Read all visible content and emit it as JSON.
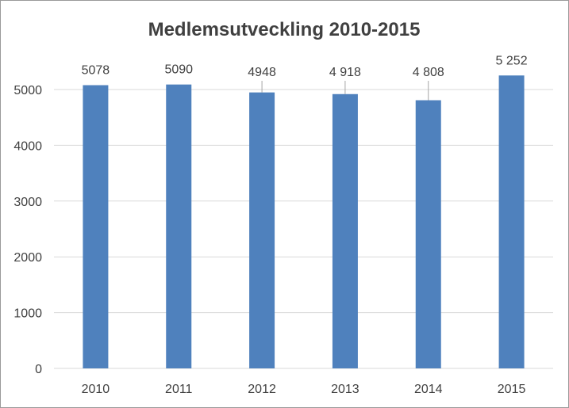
{
  "chart_data": {
    "type": "bar",
    "title": "Medlemsutveckling 2010-2015",
    "categories": [
      "2010",
      "2011",
      "2012",
      "2013",
      "2014",
      "2015"
    ],
    "values": [
      5078,
      5090,
      4948,
      4918,
      4808,
      5252
    ],
    "value_labels": [
      "5078",
      "5090",
      "4948",
      "4 918",
      "4 808",
      "5 252"
    ],
    "yticks": [
      "0",
      "1000",
      "2000",
      "3000",
      "4000",
      "5000"
    ],
    "ylim": [
      0,
      5500
    ],
    "xlabel": "",
    "ylabel": "",
    "grid": true,
    "legend": false,
    "bar_color": "#4f81bd",
    "grid_color": "#d9d9d9"
  }
}
